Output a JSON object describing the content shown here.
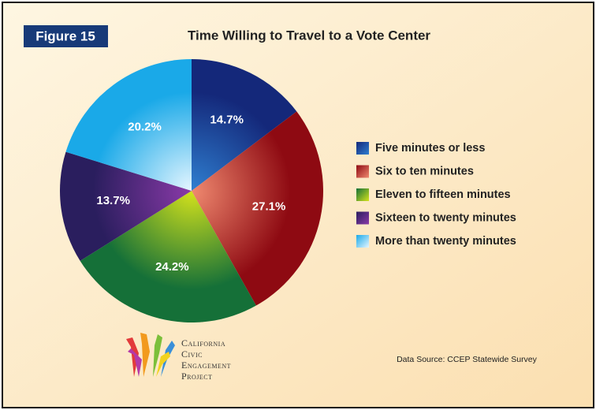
{
  "chart_data": {
    "type": "pie",
    "figure_label": "Figure 15",
    "title": "Time Willing to Travel to a Vote Center",
    "categories": [
      "Five minutes or less",
      "Six to ten minutes",
      "Eleven to fifteen minutes",
      "Sixteen to twenty minutes",
      "More than twenty minutes"
    ],
    "values": [
      14.7,
      27.1,
      24.2,
      13.7,
      20.2
    ],
    "value_labels": [
      "14.7%",
      "27.1%",
      "24.2%",
      "13.7%",
      "20.2%"
    ],
    "colors": [
      "#14287a",
      "#8e0a12",
      "#157038",
      "#2a1e5e",
      "#1aa9e8"
    ],
    "center_colors": [
      "#2f7fd0",
      "#f08a70",
      "#d4e21c",
      "#8a3aa8",
      "#e6f6ff"
    ],
    "source": "Data Source: CCEP Statewide Survey",
    "logo": [
      "California",
      "Civic",
      "Engagement",
      "Project"
    ]
  }
}
